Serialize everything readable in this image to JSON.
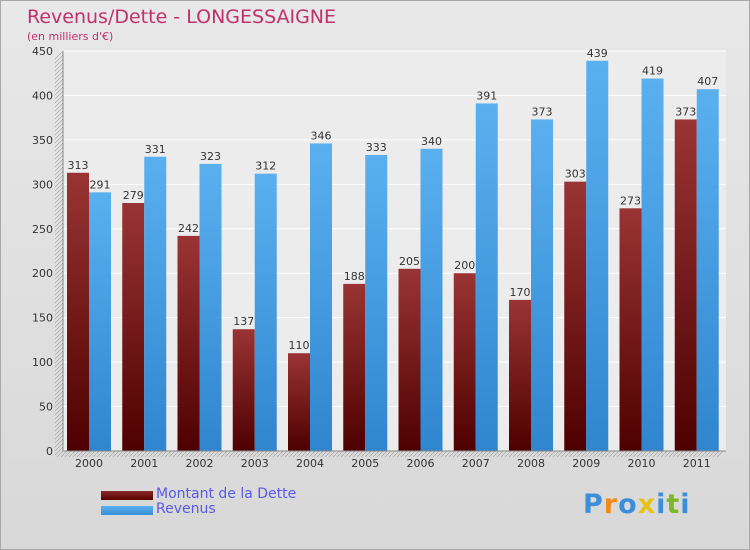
{
  "title": "Revenus/Dette - LONGESSAIGNE",
  "subtitle": "(en milliers d'€)",
  "colors": {
    "dette": "#7a1a1a",
    "revenus": "#4aa3e8",
    "title": "#c0306a",
    "legend_text": "#5a5ae6"
  },
  "logo": {
    "letters": [
      "P",
      "r",
      "o",
      "x",
      "i",
      "t",
      "i"
    ],
    "colors": [
      "#3a8fd8",
      "#f08a1a",
      "#3a8fd8",
      "#e8c21a",
      "#3a8fd8",
      "#7ab82a",
      "#3a8fd8"
    ]
  },
  "chart_data": {
    "type": "bar",
    "categories": [
      "2000",
      "2001",
      "2002",
      "2003",
      "2004",
      "2005",
      "2006",
      "2007",
      "2008",
      "2009",
      "2010",
      "2011"
    ],
    "series": [
      {
        "name": "Montant de la Dette",
        "values": [
          313,
          279,
          242,
          137,
          110,
          188,
          205,
          200,
          170,
          303,
          273,
          373
        ]
      },
      {
        "name": "Revenus",
        "values": [
          291,
          331,
          323,
          312,
          346,
          333,
          340,
          391,
          373,
          439,
          419,
          407
        ]
      }
    ],
    "yticks": [
      0,
      50,
      100,
      150,
      200,
      250,
      300,
      350,
      400,
      450
    ],
    "ylim": [
      0,
      450
    ],
    "grid": true,
    "legend": "bottom-left"
  }
}
